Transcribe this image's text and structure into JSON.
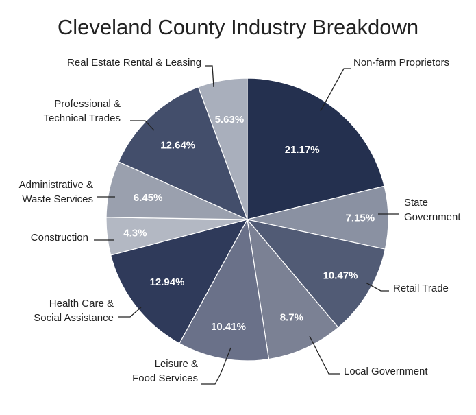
{
  "chart_data": {
    "type": "pie",
    "title": "Cleveland County Industry Breakdown",
    "slices": [
      {
        "label": "Non-farm Proprietors",
        "value": 21.17,
        "value_label": "21.17%",
        "color": "#24304f"
      },
      {
        "label": "State Government",
        "value": 7.15,
        "value_label": "7.15%",
        "color": "#8a91a2"
      },
      {
        "label": "Retail Trade",
        "value": 10.47,
        "value_label": "10.47%",
        "color": "#515b75"
      },
      {
        "label": "Local Government",
        "value": 8.7,
        "value_label": "8.7%",
        "color": "#7b8194"
      },
      {
        "label": "Leisure & Food Services",
        "value": 10.41,
        "value_label": "10.41%",
        "color": "#6a7189"
      },
      {
        "label": "Health Care & Social Assistance",
        "value": 12.94,
        "value_label": "12.94%",
        "color": "#2f3a5a"
      },
      {
        "label": "Construction",
        "value": 4.3,
        "value_label": "4.3%",
        "color": "#b3b8c3"
      },
      {
        "label": "Administrative & Waste Services",
        "value": 6.45,
        "value_label": "6.45%",
        "color": "#9aa0ae"
      },
      {
        "label": "Professional & Technical Trades",
        "value": 12.64,
        "value_label": "12.64%",
        "color": "#434e6b"
      },
      {
        "label": "Real Estate Rental & Leasing",
        "value": 5.63,
        "value_label": "5.63%",
        "color": "#a9afbc"
      }
    ],
    "label_lines": [
      [
        "Non-farm Proprietors"
      ],
      [
        "State",
        "Government"
      ],
      [
        "Retail Trade"
      ],
      [
        "Local Government"
      ],
      [
        "Leisure &",
        "Food Services"
      ],
      [
        "Health Care &",
        "Social Assistance"
      ],
      [
        "Construction"
      ],
      [
        "Administrative &",
        "Waste Services"
      ],
      [
        "Professional &",
        "Technical Trades"
      ],
      [
        "Real Estate Rental & Leasing"
      ]
    ],
    "start_angle_deg": 0,
    "direction": "clockwise",
    "legend": "none"
  }
}
